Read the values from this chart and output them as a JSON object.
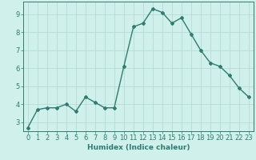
{
  "title": "",
  "xlabel": "Humidex (Indice chaleur)",
  "ylabel": "",
  "x": [
    0,
    1,
    2,
    3,
    4,
    5,
    6,
    7,
    8,
    9,
    10,
    11,
    12,
    13,
    14,
    15,
    16,
    17,
    18,
    19,
    20,
    21,
    22,
    23
  ],
  "y": [
    2.7,
    3.7,
    3.8,
    3.8,
    4.0,
    3.6,
    4.4,
    4.1,
    3.8,
    3.8,
    6.1,
    8.3,
    8.5,
    9.3,
    9.1,
    8.5,
    8.8,
    7.9,
    7.0,
    6.3,
    6.1,
    5.6,
    4.9,
    4.4
  ],
  "line_color": "#2e7d6e",
  "marker": "D",
  "marker_size": 2.0,
  "line_width": 1.0,
  "bg_color": "#cff0eb",
  "grid_color": "#aed8d2",
  "tick_color": "#2e7d6e",
  "label_color": "#2e7d6e",
  "ylim": [
    2.5,
    9.7
  ],
  "xlim": [
    -0.5,
    23.5
  ],
  "yticks": [
    3,
    4,
    5,
    6,
    7,
    8,
    9
  ],
  "xticks": [
    0,
    1,
    2,
    3,
    4,
    5,
    6,
    7,
    8,
    9,
    10,
    11,
    12,
    13,
    14,
    15,
    16,
    17,
    18,
    19,
    20,
    21,
    22,
    23
  ],
  "xlabel_fontsize": 6.5,
  "tick_fontsize": 6.0
}
